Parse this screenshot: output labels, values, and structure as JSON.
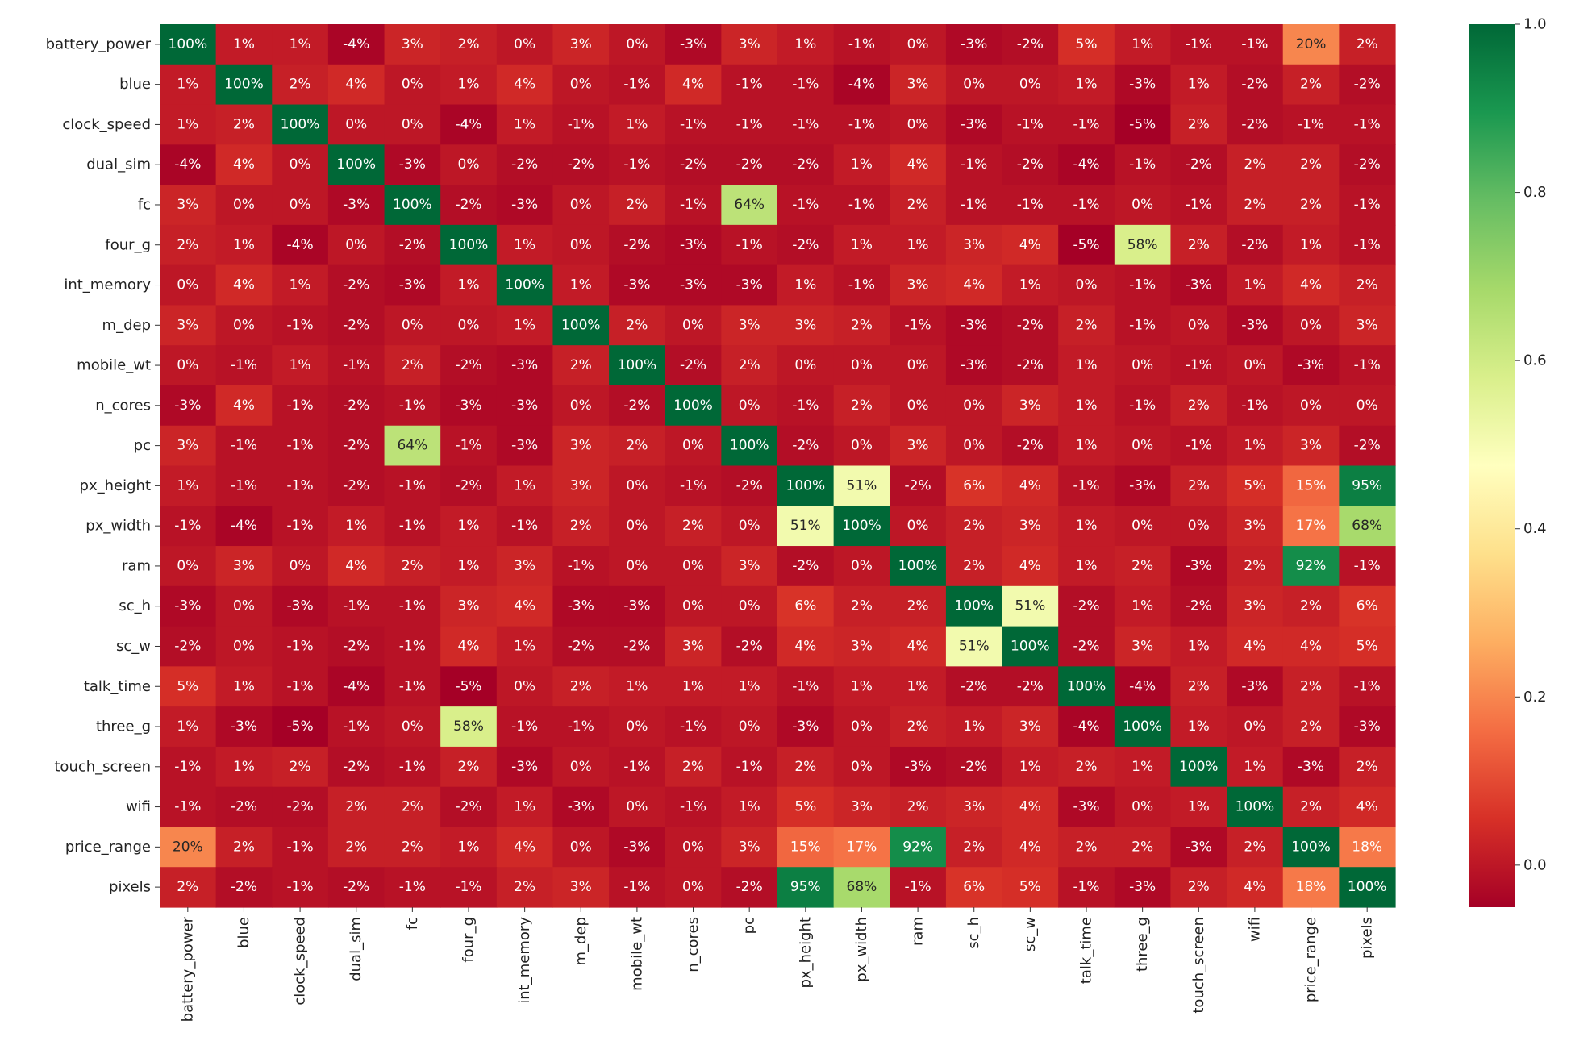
{
  "chart_data": {
    "type": "heatmap",
    "labels": [
      "battery_power",
      "blue",
      "clock_speed",
      "dual_sim",
      "fc",
      "four_g",
      "int_memory",
      "m_dep",
      "mobile_wt",
      "n_cores",
      "pc",
      "px_height",
      "px_width",
      "ram",
      "sc_h",
      "sc_w",
      "talk_time",
      "three_g",
      "touch_screen",
      "wifi",
      "price_range",
      "pixels"
    ],
    "values": [
      [
        1.0,
        0.01,
        0.01,
        -0.04,
        0.03,
        0.02,
        -0.0,
        0.03,
        0.0,
        -0.03,
        0.03,
        0.01,
        -0.01,
        -0.0,
        -0.03,
        -0.02,
        0.05,
        0.01,
        -0.01,
        -0.01,
        0.2,
        0.02
      ],
      [
        0.01,
        1.0,
        0.02,
        0.04,
        0.0,
        0.01,
        0.04,
        0.0,
        -0.01,
        0.04,
        -0.01,
        -0.01,
        -0.04,
        0.03,
        -0.0,
        0.0,
        0.01,
        -0.03,
        0.01,
        -0.02,
        0.02,
        -0.02
      ],
      [
        0.01,
        0.02,
        1.0,
        -0.0,
        -0.0,
        -0.04,
        0.01,
        -0.01,
        0.01,
        -0.01,
        -0.01,
        -0.01,
        -0.01,
        0.0,
        -0.03,
        -0.01,
        -0.01,
        -0.05,
        0.02,
        -0.02,
        -0.01,
        -0.01
      ],
      [
        -0.04,
        0.04,
        -0.0,
        1.0,
        -0.03,
        0.0,
        -0.02,
        -0.02,
        -0.01,
        -0.02,
        -0.02,
        -0.02,
        0.01,
        0.04,
        -0.01,
        -0.02,
        -0.04,
        -0.01,
        -0.02,
        0.02,
        0.02,
        -0.02
      ],
      [
        0.03,
        0.0,
        -0.0,
        -0.03,
        1.0,
        -0.02,
        -0.03,
        -0.0,
        0.02,
        -0.01,
        0.64,
        -0.01,
        -0.01,
        0.02,
        -0.01,
        -0.01,
        -0.01,
        0.0,
        -0.01,
        0.02,
        0.02,
        -0.01
      ],
      [
        0.02,
        0.01,
        -0.04,
        0.0,
        -0.02,
        1.0,
        0.01,
        -0.0,
        -0.02,
        -0.03,
        -0.01,
        -0.02,
        0.01,
        0.01,
        0.03,
        0.04,
        -0.05,
        0.58,
        0.02,
        -0.02,
        0.01,
        -0.01
      ],
      [
        -0.0,
        0.04,
        0.01,
        -0.02,
        -0.03,
        0.01,
        1.0,
        0.01,
        -0.03,
        -0.03,
        -0.03,
        0.01,
        -0.01,
        0.03,
        0.04,
        0.01,
        -0.0,
        -0.01,
        -0.03,
        0.01,
        0.04,
        0.02
      ],
      [
        0.03,
        0.0,
        -0.01,
        -0.02,
        -0.0,
        -0.0,
        0.01,
        1.0,
        0.02,
        -0.0,
        0.03,
        0.03,
        0.02,
        -0.01,
        -0.03,
        -0.02,
        0.02,
        -0.01,
        -0.0,
        -0.03,
        0.0,
        0.03
      ],
      [
        0.0,
        -0.01,
        0.01,
        -0.01,
        0.02,
        -0.02,
        -0.03,
        0.02,
        1.0,
        -0.02,
        0.02,
        0.0,
        0.0,
        -0.0,
        -0.03,
        -0.02,
        0.01,
        0.0,
        -0.01,
        -0.0,
        -0.03,
        -0.01
      ],
      [
        -0.03,
        0.04,
        -0.01,
        -0.02,
        -0.01,
        -0.03,
        -0.03,
        -0.0,
        -0.02,
        1.0,
        -0.0,
        -0.01,
        0.02,
        0.0,
        -0.0,
        0.03,
        0.01,
        -0.01,
        0.02,
        -0.01,
        0.0,
        0.0
      ],
      [
        0.03,
        -0.01,
        -0.01,
        -0.02,
        0.64,
        -0.01,
        -0.03,
        0.03,
        0.02,
        -0.0,
        1.0,
        -0.02,
        0.0,
        0.03,
        0.0,
        -0.02,
        0.01,
        -0.0,
        -0.01,
        0.01,
        0.03,
        -0.02
      ],
      [
        0.01,
        -0.01,
        -0.01,
        -0.02,
        -0.01,
        -0.02,
        0.01,
        0.03,
        0.0,
        -0.01,
        -0.02,
        1.0,
        0.51,
        -0.02,
        0.06,
        0.04,
        -0.01,
        -0.03,
        0.02,
        0.05,
        0.15,
        0.95
      ],
      [
        -0.01,
        -0.04,
        -0.01,
        0.01,
        -0.01,
        0.01,
        -0.01,
        0.02,
        0.0,
        0.02,
        0.0,
        0.51,
        1.0,
        0.0,
        0.02,
        0.03,
        0.01,
        0.0,
        -0.0,
        0.03,
        0.17,
        0.68
      ],
      [
        -0.0,
        0.03,
        0.0,
        0.04,
        0.02,
        0.01,
        0.03,
        -0.01,
        -0.0,
        0.0,
        0.03,
        -0.02,
        0.0,
        1.0,
        0.02,
        0.04,
        0.01,
        0.02,
        -0.03,
        0.02,
        0.92,
        -0.01
      ],
      [
        -0.03,
        -0.0,
        -0.03,
        -0.01,
        -0.01,
        0.03,
        0.04,
        -0.03,
        -0.03,
        -0.0,
        0.0,
        0.06,
        0.02,
        0.02,
        1.0,
        0.51,
        -0.02,
        0.01,
        -0.02,
        0.03,
        0.02,
        0.06
      ],
      [
        -0.02,
        0.0,
        -0.01,
        -0.02,
        -0.01,
        0.04,
        0.01,
        -0.02,
        -0.02,
        0.03,
        -0.02,
        0.04,
        0.03,
        0.04,
        0.51,
        1.0,
        -0.02,
        0.03,
        0.01,
        0.04,
        0.04,
        0.05
      ],
      [
        0.05,
        0.01,
        -0.01,
        -0.04,
        -0.01,
        -0.05,
        -0.0,
        0.02,
        0.01,
        0.01,
        0.01,
        -0.01,
        0.01,
        0.01,
        -0.02,
        -0.02,
        1.0,
        -0.04,
        0.02,
        -0.03,
        0.02,
        -0.01
      ],
      [
        0.01,
        -0.03,
        -0.05,
        -0.01,
        0.0,
        0.58,
        -0.01,
        -0.01,
        0.0,
        -0.01,
        -0.0,
        -0.03,
        0.0,
        0.02,
        0.01,
        0.03,
        -0.04,
        1.0,
        0.01,
        0.0,
        0.02,
        -0.03
      ],
      [
        -0.01,
        0.01,
        0.02,
        -0.02,
        -0.01,
        0.02,
        -0.03,
        -0.0,
        -0.01,
        0.02,
        -0.01,
        0.02,
        -0.0,
        -0.03,
        -0.02,
        0.01,
        0.02,
        0.01,
        1.0,
        0.01,
        -0.03,
        0.02
      ],
      [
        -0.01,
        -0.02,
        -0.02,
        0.02,
        0.02,
        -0.02,
        0.01,
        -0.03,
        -0.0,
        -0.01,
        0.01,
        0.05,
        0.03,
        0.02,
        0.03,
        0.04,
        -0.03,
        0.0,
        0.01,
        1.0,
        0.02,
        0.04
      ],
      [
        0.2,
        0.02,
        -0.01,
        0.02,
        0.02,
        0.01,
        0.04,
        0.0,
        -0.03,
        0.0,
        0.03,
        0.15,
        0.17,
        0.92,
        0.02,
        0.04,
        0.02,
        0.02,
        -0.03,
        0.02,
        1.0,
        0.18
      ],
      [
        0.02,
        -0.02,
        -0.01,
        -0.02,
        -0.01,
        -0.01,
        0.02,
        0.03,
        -0.01,
        0.0,
        -0.02,
        0.95,
        0.68,
        -0.01,
        0.06,
        0.05,
        -0.01,
        -0.03,
        0.02,
        0.04,
        0.18,
        1.0
      ]
    ],
    "value_format": "percent",
    "colormap": "RdYlGn",
    "vmin": -0.05,
    "vmax": 1.0,
    "colorbar": {
      "ticks": [
        0.0,
        0.2,
        0.4,
        0.6,
        0.8,
        1.0
      ],
      "tick_labels": [
        "0.0",
        "0.2",
        "0.4",
        "0.6",
        "0.8",
        "1.0"
      ],
      "placement": "right"
    },
    "title": "",
    "xlabel": "",
    "ylabel": ""
  }
}
